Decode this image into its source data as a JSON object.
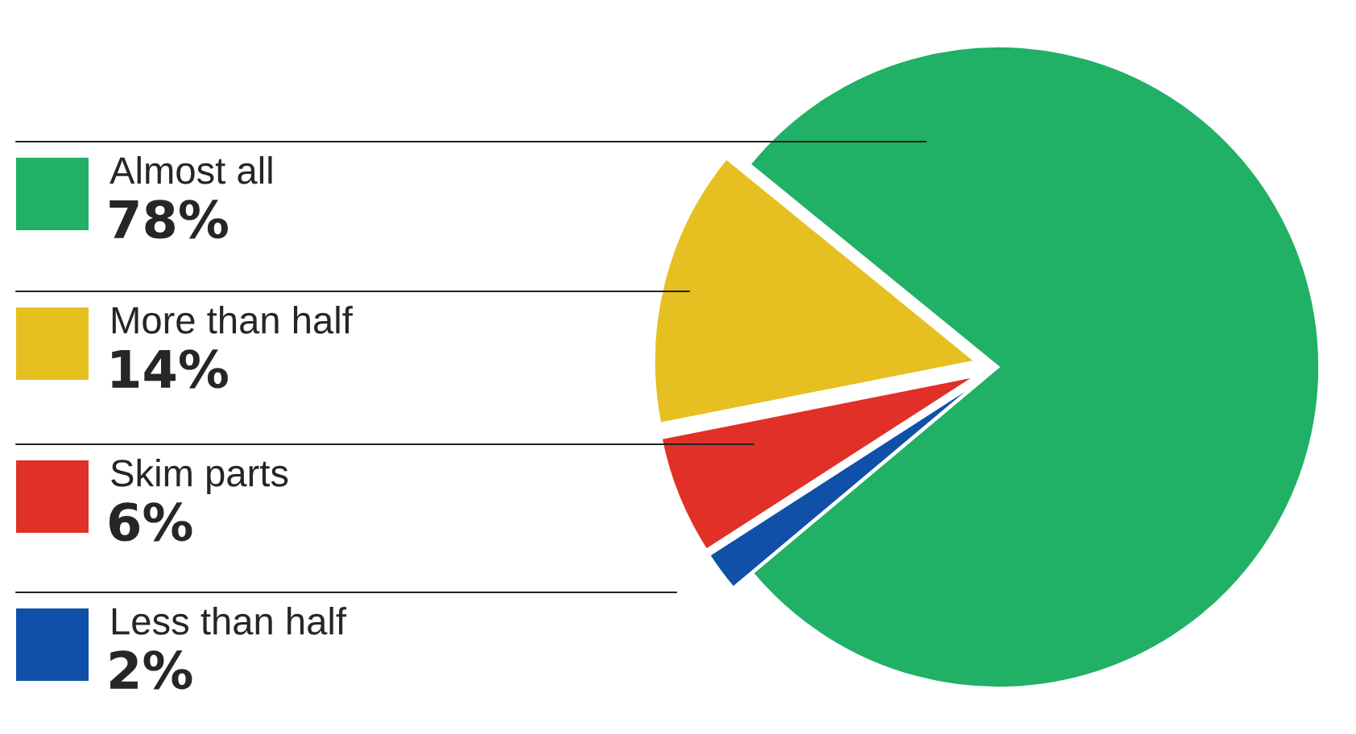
{
  "chart_data": {
    "type": "pie",
    "categories": [
      "Almost all",
      "More than half",
      "Skim parts",
      "Less than half"
    ],
    "values": [
      78,
      14,
      6,
      2
    ],
    "value_labels": [
      "78%",
      "14%",
      "6%",
      "2%"
    ],
    "colors": [
      "#20b066",
      "#e6c020",
      "#e03028",
      "#1050a8"
    ],
    "legend": "left"
  }
}
